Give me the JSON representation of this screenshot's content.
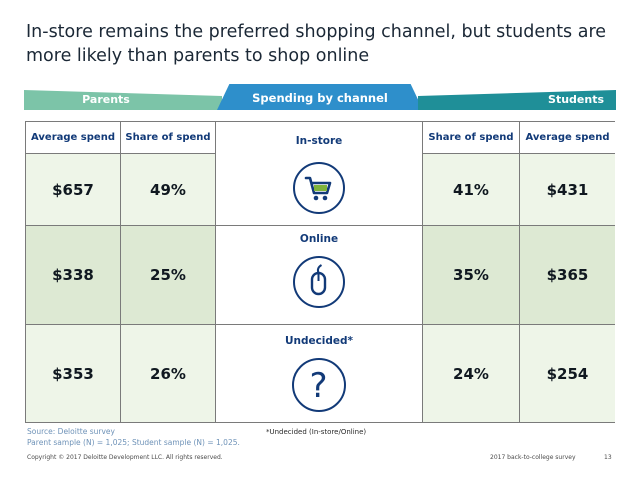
{
  "title": "In-store remains the preferred shopping channel, but students are more likely than parents to shop online",
  "banners": {
    "parents": "Parents",
    "center": "Spending by channel",
    "students": "Students"
  },
  "headers": {
    "avg_spend": "Average spend",
    "share_of_spend": "Share of spend"
  },
  "channels": [
    {
      "label": "In-store",
      "icon": "shopping-cart-icon",
      "parents_avg": "$657",
      "parents_share": "49%",
      "students_share": "41%",
      "students_avg": "$431"
    },
    {
      "label": "Online",
      "icon": "computer-mouse-icon",
      "parents_avg": "$338",
      "parents_share": "25%",
      "students_share": "35%",
      "students_avg": "$365"
    },
    {
      "label": "Undecided*",
      "icon": "question-mark-icon",
      "parents_avg": "$353",
      "parents_share": "26%",
      "students_share": "24%",
      "students_avg": "$254"
    }
  ],
  "source_line1": "Source: Deloitte survey",
  "source_line2": "Parent sample (N) = 1,025; Student sample (N) = 1,025.",
  "footnote": "*Undecided (In-store/Online)",
  "copyright": "Copyright © 2017 Deloitte Development LLC. All rights reserved.",
  "survey_name": "2017 back-to-college survey",
  "page_number": "13",
  "colors": {
    "parents_banner": "#7cc4a8",
    "center_banner": "#2e8fcb",
    "students_banner": "#1f8f98",
    "icon_navy": "#123a78",
    "cart_green": "#7fb33a"
  }
}
